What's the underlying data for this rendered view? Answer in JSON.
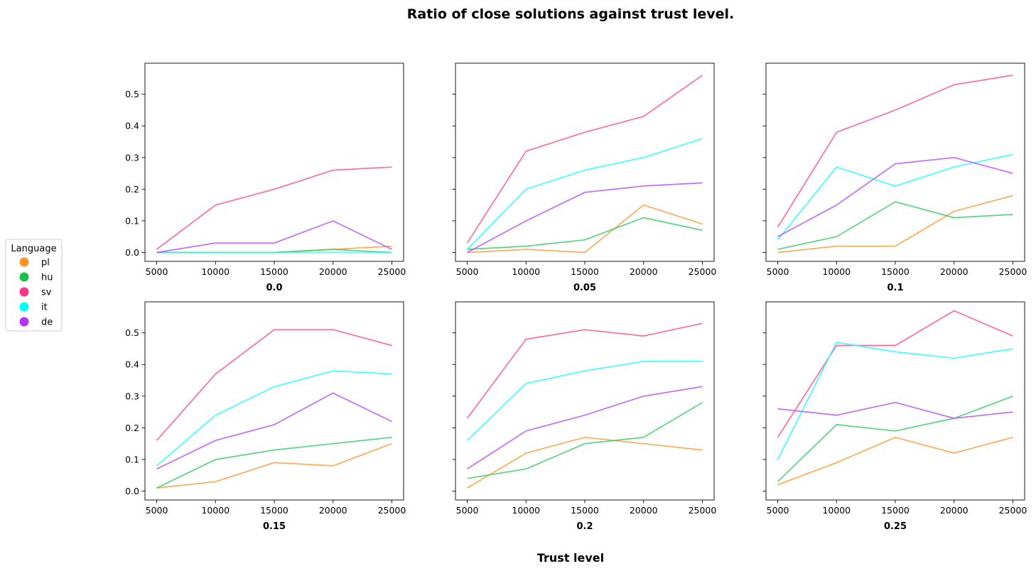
{
  "title": "Ratio of close solutions against trust level.",
  "xlabel": "Trust level",
  "legend": {
    "title": "Language",
    "placement": "left"
  },
  "chart_data": {
    "type": "line",
    "x": [
      5000,
      10000,
      15000,
      20000,
      25000
    ],
    "xticks": [
      "5000",
      "10000",
      "15000",
      "20000",
      "25000"
    ],
    "yticks": [
      "0.0",
      "0.1",
      "0.2",
      "0.3",
      "0.4",
      "0.5"
    ],
    "ylim": [
      -0.028,
      0.598
    ],
    "xlim": [
      4000,
      26000
    ],
    "shared_y": true,
    "series_meta": [
      {
        "name": "pl",
        "color": "#ff9933",
        "legend_color": "#ff9426"
      },
      {
        "name": "hu",
        "color": "#33cc66",
        "legend_color": "#1ac24d"
      },
      {
        "name": "sv",
        "color": "#ff4d88",
        "legend_color": "#ff3388"
      },
      {
        "name": "it",
        "color": "#1affff",
        "legend_color": "#00ffff"
      },
      {
        "name": "de",
        "color": "#b44dff",
        "legend_color": "#b233ff"
      }
    ],
    "panels": [
      {
        "label": "0.0",
        "values": {
          "pl": [
            0.0,
            0.0,
            0.0,
            0.01,
            0.02
          ],
          "hu": [
            0.0,
            0.0,
            0.0,
            0.01,
            0.0
          ],
          "sv": [
            0.01,
            0.15,
            0.2,
            0.26,
            0.27
          ],
          "it": [
            0.0,
            0.0,
            0.0,
            0.0,
            0.0
          ],
          "de": [
            0.0,
            0.03,
            0.03,
            0.1,
            0.01
          ]
        }
      },
      {
        "label": "0.05",
        "values": {
          "pl": [
            0.0,
            0.01,
            0.0,
            0.15,
            0.09
          ],
          "hu": [
            0.01,
            0.02,
            0.04,
            0.11,
            0.07
          ],
          "sv": [
            0.03,
            0.32,
            0.38,
            0.43,
            0.56
          ],
          "it": [
            0.01,
            0.2,
            0.26,
            0.3,
            0.36
          ],
          "de": [
            0.0,
            0.1,
            0.19,
            0.21,
            0.22
          ]
        }
      },
      {
        "label": "0.1",
        "values": {
          "pl": [
            0.0,
            0.02,
            0.02,
            0.13,
            0.18
          ],
          "hu": [
            0.01,
            0.05,
            0.16,
            0.11,
            0.12
          ],
          "sv": [
            0.08,
            0.38,
            0.45,
            0.53,
            0.56
          ],
          "it": [
            0.04,
            0.27,
            0.21,
            0.27,
            0.31
          ],
          "de": [
            0.05,
            0.15,
            0.28,
            0.3,
            0.25
          ]
        }
      },
      {
        "label": "0.15",
        "values": {
          "pl": [
            0.01,
            0.03,
            0.09,
            0.08,
            0.15
          ],
          "hu": [
            0.01,
            0.1,
            0.13,
            0.15,
            0.17
          ],
          "sv": [
            0.16,
            0.37,
            0.51,
            0.51,
            0.46
          ],
          "it": [
            0.08,
            0.24,
            0.33,
            0.38,
            0.37
          ],
          "de": [
            0.07,
            0.16,
            0.21,
            0.31,
            0.22
          ]
        }
      },
      {
        "label": "0.2",
        "values": {
          "pl": [
            0.01,
            0.12,
            0.17,
            0.15,
            0.13
          ],
          "hu": [
            0.04,
            0.07,
            0.15,
            0.17,
            0.28
          ],
          "sv": [
            0.23,
            0.48,
            0.51,
            0.49,
            0.53
          ],
          "it": [
            0.16,
            0.34,
            0.38,
            0.41,
            0.41
          ],
          "de": [
            0.07,
            0.19,
            0.24,
            0.3,
            0.33
          ]
        }
      },
      {
        "label": "0.25",
        "values": {
          "pl": [
            0.02,
            0.09,
            0.17,
            0.12,
            0.17
          ],
          "hu": [
            0.03,
            0.21,
            0.19,
            0.23,
            0.3
          ],
          "sv": [
            0.17,
            0.46,
            0.46,
            0.57,
            0.49
          ],
          "it": [
            0.1,
            0.47,
            0.44,
            0.42,
            0.45
          ],
          "de": [
            0.26,
            0.24,
            0.28,
            0.23,
            0.25
          ]
        }
      }
    ]
  }
}
